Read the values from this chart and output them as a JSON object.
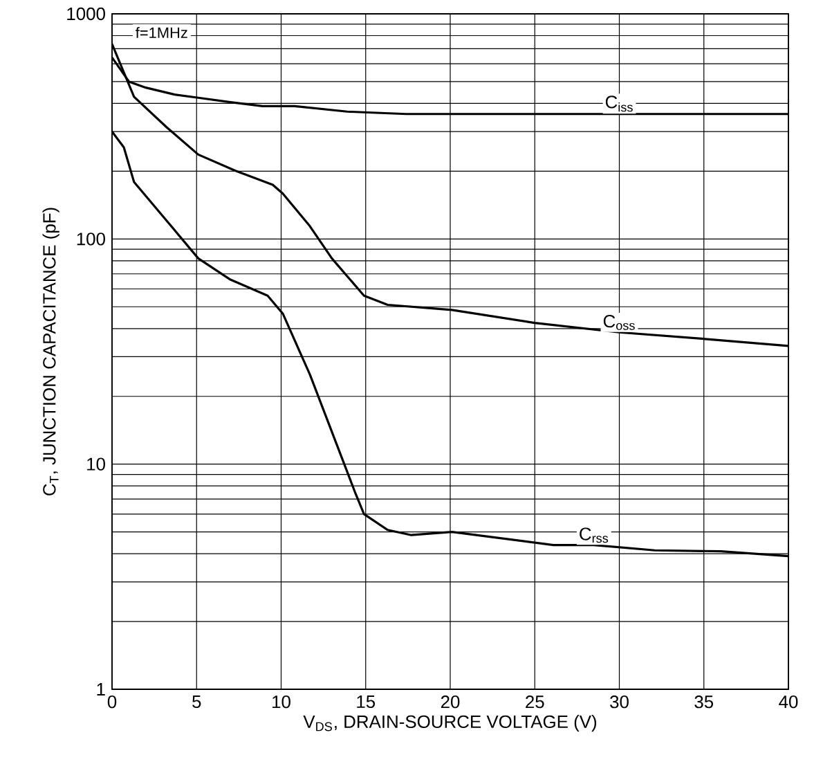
{
  "chart_data": {
    "type": "line",
    "xlabel": "V$_{DS}$, DRAIN-SOURCE VOLTAGE (V)",
    "ylabel": "C$_{T}$, JUNCTION CAPACITANCE (pF)",
    "annotations": [
      "f=1MHz"
    ],
    "log": "y",
    "grid": true,
    "legend": false,
    "marker": "none",
    "line_style": "solid",
    "xlim": [
      0,
      40
    ],
    "xticks": [
      0,
      5,
      10,
      15,
      20,
      25,
      30,
      35,
      40
    ],
    "ylim": [
      1,
      1000
    ],
    "yticks": [
      1,
      10,
      100,
      1000
    ],
    "series": [
      {
        "name": "C$_{iss}$",
        "color": "#000000",
        "x": [
          0,
          1,
          2,
          3.7,
          5.1,
          7,
          8.9,
          10.8,
          13.9,
          17.4,
          20,
          25,
          30,
          35,
          40
        ],
        "values": [
          640,
          500,
          470,
          438,
          424,
          405,
          389,
          389,
          368,
          359,
          359,
          359,
          359,
          359,
          359
        ]
      },
      {
        "name": "C$_{oss}$",
        "color": "#000000",
        "x": [
          0,
          1.3,
          3.2,
          5.1,
          7.3,
          9.5,
          10.1,
          11.7,
          13,
          14.9,
          16.3,
          20.1,
          25,
          30,
          35.2,
          40
        ],
        "values": [
          735,
          428,
          315,
          237,
          201,
          174,
          159,
          114,
          82,
          56,
          51,
          48.4,
          42.4,
          38.5,
          35.9,
          33.5
        ]
      },
      {
        "name": "C$_{rss}$",
        "color": "#000000",
        "x": [
          0,
          0.7,
          1.3,
          3.5,
          5.1,
          7,
          9.2,
          10.1,
          11.7,
          14.4,
          14.9,
          16.3,
          17.7,
          20.1,
          26.1,
          28.5,
          32.1,
          36,
          40
        ],
        "values": [
          300,
          255,
          179,
          114,
          82,
          66,
          56,
          46.6,
          25,
          7.4,
          6,
          5.1,
          4.84,
          5,
          4.37,
          4.37,
          4.14,
          4.1,
          3.9
        ]
      }
    ]
  }
}
